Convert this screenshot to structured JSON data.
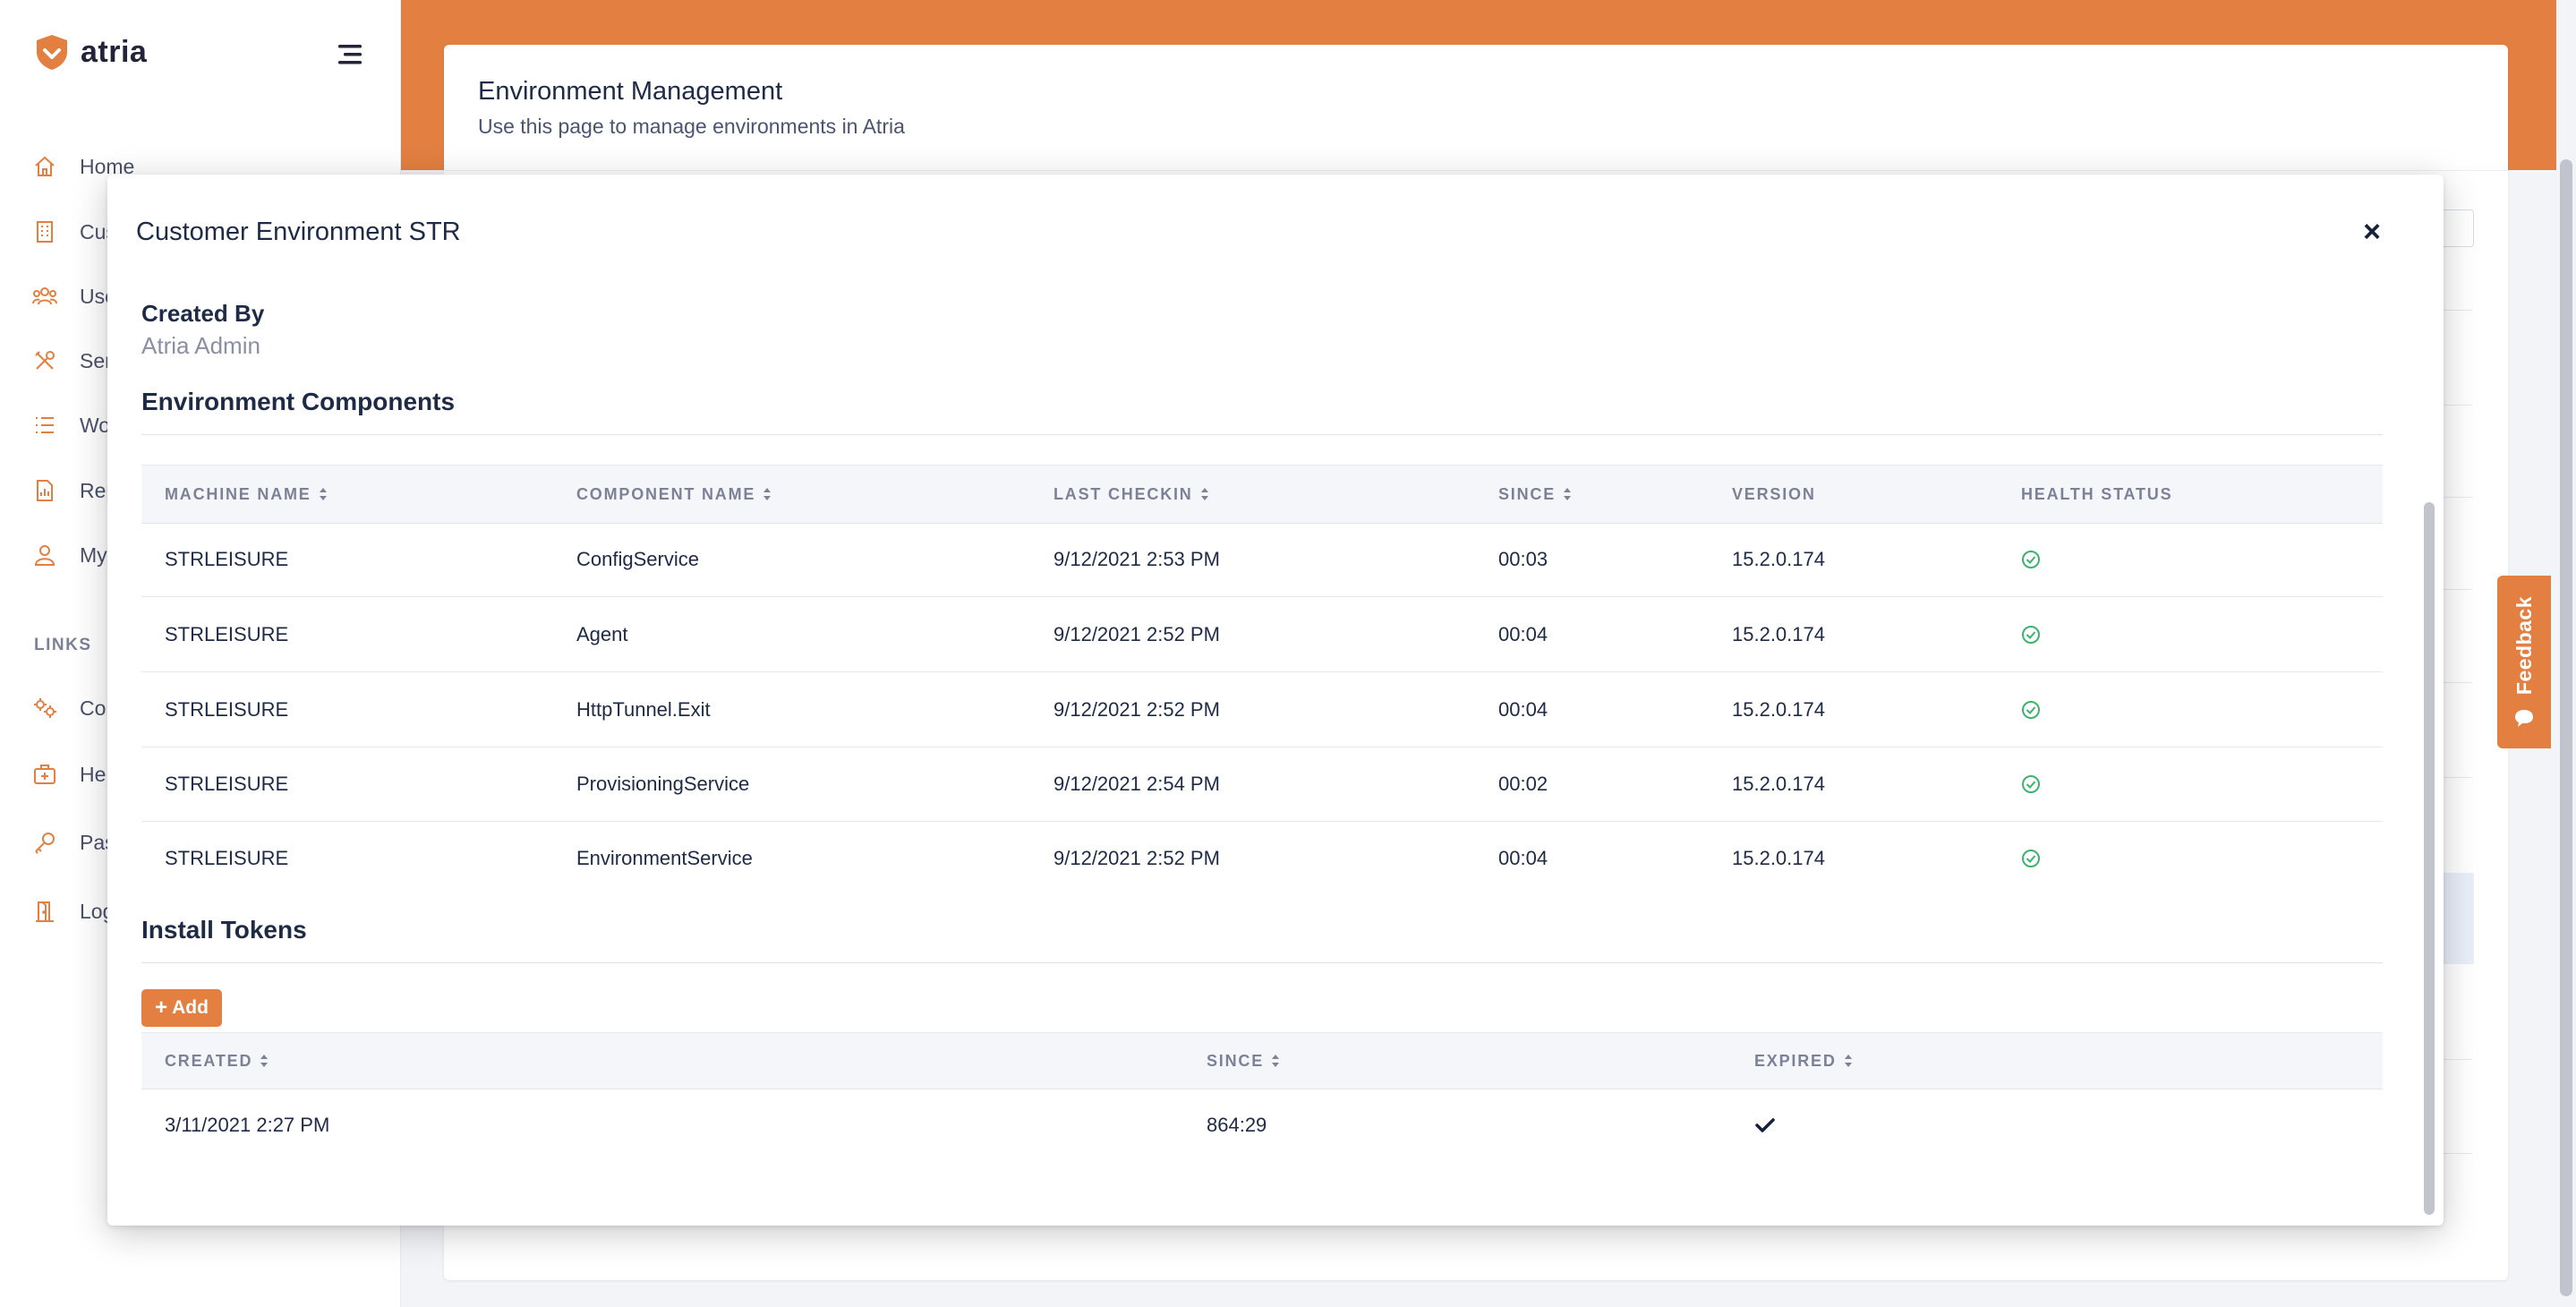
{
  "app": {
    "brand": "atria",
    "brand_color": "#e37f41"
  },
  "sidebar": {
    "items": [
      {
        "label": "Home",
        "icon": "home-icon"
      },
      {
        "label": "Cus",
        "icon": "building-icon"
      },
      {
        "label": "Use",
        "icon": "users-icon"
      },
      {
        "label": "Ser",
        "icon": "tools-icon"
      },
      {
        "label": "Wo",
        "icon": "list-icon"
      },
      {
        "label": "Rep",
        "icon": "report-icon"
      },
      {
        "label": "My",
        "icon": "user-icon"
      }
    ],
    "links_heading": "LINKS",
    "links": [
      {
        "label": "Co",
        "icon": "gears-icon"
      },
      {
        "label": "He",
        "icon": "medkit-icon"
      },
      {
        "label": "Pas",
        "icon": "key-icon"
      },
      {
        "label": "Log",
        "icon": "door-icon"
      }
    ]
  },
  "page": {
    "title": "Environment Management",
    "subtitle": "Use this page to manage environments in Atria"
  },
  "feedback": {
    "label": "Feedback"
  },
  "modal": {
    "title": "Customer Environment STR",
    "close": "×",
    "created_by_label": "Created By",
    "created_by_value": "Atria Admin",
    "components": {
      "title": "Environment Components",
      "columns": [
        "MACHINE NAME",
        "COMPONENT NAME",
        "LAST CHECKIN",
        "SINCE",
        "VERSION",
        "HEALTH STATUS"
      ],
      "rows": [
        {
          "machine": "STRLEISURE",
          "component": "ConfigService",
          "last_checkin": "9/12/2021 2:53 PM",
          "since": "00:03",
          "version": "15.2.0.174",
          "health": "healthy"
        },
        {
          "machine": "STRLEISURE",
          "component": "Agent",
          "last_checkin": "9/12/2021 2:52 PM",
          "since": "00:04",
          "version": "15.2.0.174",
          "health": "healthy"
        },
        {
          "machine": "STRLEISURE",
          "component": "HttpTunnel.Exit",
          "last_checkin": "9/12/2021 2:52 PM",
          "since": "00:04",
          "version": "15.2.0.174",
          "health": "healthy"
        },
        {
          "machine": "STRLEISURE",
          "component": "ProvisioningService",
          "last_checkin": "9/12/2021 2:54 PM",
          "since": "00:02",
          "version": "15.2.0.174",
          "health": "healthy"
        },
        {
          "machine": "STRLEISURE",
          "component": "EnvironmentService",
          "last_checkin": "9/12/2021 2:52 PM",
          "since": "00:04",
          "version": "15.2.0.174",
          "health": "healthy"
        }
      ]
    },
    "tokens": {
      "title": "Install Tokens",
      "add_label": "Add",
      "columns": [
        "CREATED",
        "SINCE",
        "EXPIRED"
      ],
      "rows": [
        {
          "created": "3/11/2021 2:27 PM",
          "since": "864:29",
          "expired": true
        }
      ]
    }
  }
}
